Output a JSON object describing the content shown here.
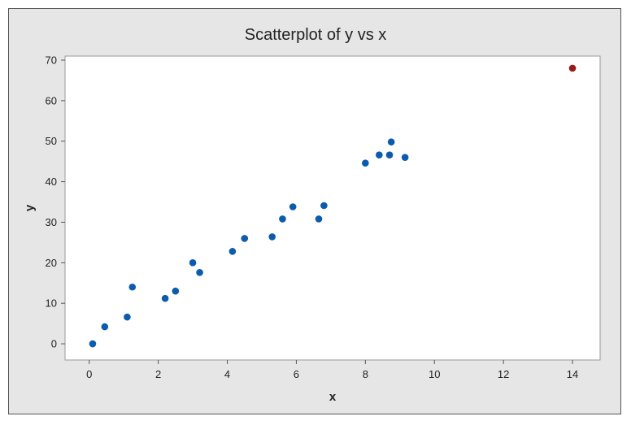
{
  "chart_data": {
    "type": "scatter",
    "title": "Scatterplot of y vs x",
    "xlabel": "x",
    "ylabel": "y",
    "xlim": [
      -0.7,
      14.8
    ],
    "ylim": [
      -4,
      71
    ],
    "x_ticks": [
      0,
      2,
      4,
      6,
      8,
      10,
      12,
      14
    ],
    "y_ticks": [
      0,
      10,
      20,
      30,
      40,
      50,
      60,
      70
    ],
    "grid": false,
    "colors": {
      "points": "#0b5cad",
      "highlight": "#9b1b1b",
      "frame": "#e6e6e6",
      "plot": "#ffffff"
    },
    "series": [
      {
        "points": [
          [
            0.1,
            0
          ],
          [
            0.45,
            4.2
          ],
          [
            1.1,
            6.6
          ],
          [
            1.25,
            14
          ],
          [
            2.2,
            11.2
          ],
          [
            2.5,
            13
          ],
          [
            3.0,
            20
          ],
          [
            3.2,
            17.6
          ],
          [
            4.15,
            22.8
          ],
          [
            4.5,
            26
          ],
          [
            5.3,
            26.4
          ],
          [
            5.6,
            30.8
          ],
          [
            5.9,
            33.8
          ],
          [
            6.65,
            30.8
          ],
          [
            6.8,
            34.1
          ],
          [
            8.0,
            44.6
          ],
          [
            8.4,
            46.6
          ],
          [
            8.7,
            46.6
          ],
          [
            8.75,
            49.8
          ],
          [
            9.15,
            46
          ]
        ],
        "color": "#0b5cad"
      },
      {
        "points": [
          [
            14,
            68
          ]
        ],
        "color": "#9b1b1b"
      }
    ]
  }
}
